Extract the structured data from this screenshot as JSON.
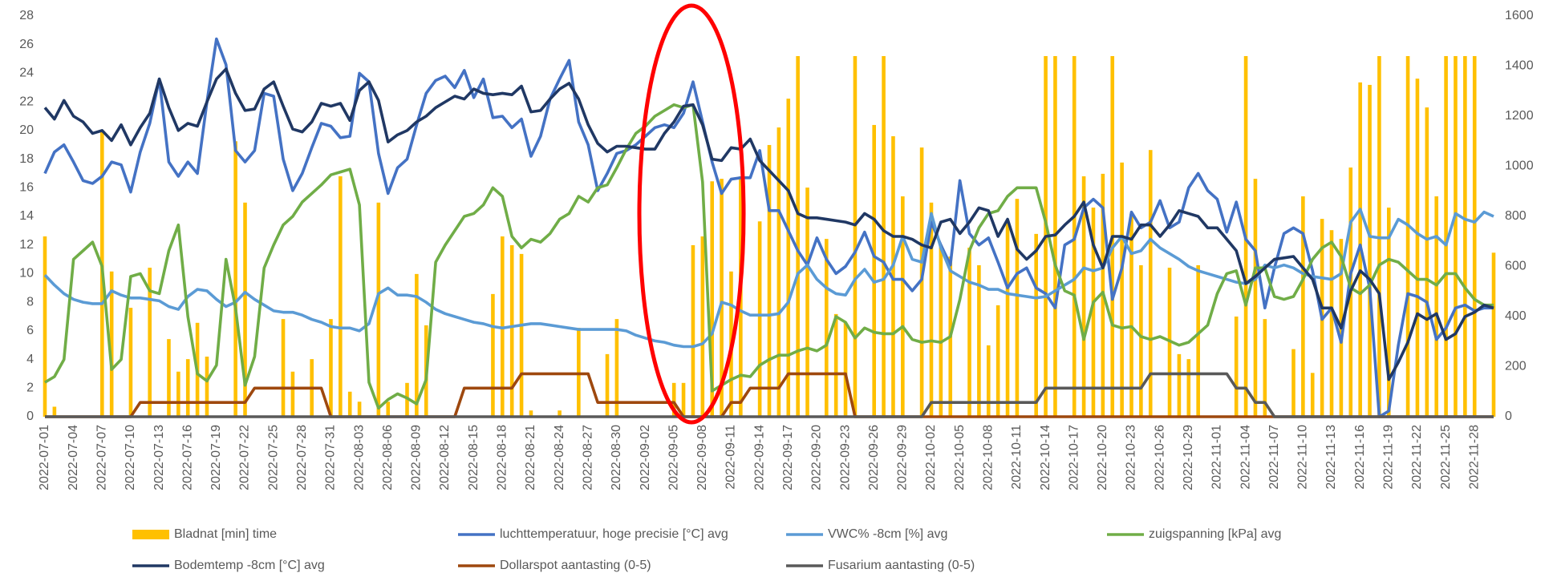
{
  "chart_data": {
    "type": "combo",
    "legend": "bottom",
    "grid": false,
    "ylim": [
      0,
      28
    ],
    "yticks": [
      0,
      2,
      4,
      6,
      8,
      10,
      12,
      14,
      16,
      18,
      20,
      22,
      24,
      26,
      28
    ],
    "y2lim": [
      0,
      1600
    ],
    "y2ticks": [
      0,
      200,
      400,
      600,
      800,
      1000,
      1200,
      1400,
      1600
    ],
    "categories": [
      "2022-07-01",
      null,
      null,
      "2022-07-04",
      null,
      null,
      "2022-07-07",
      null,
      null,
      "2022-07-10",
      null,
      null,
      "2022-07-13",
      null,
      null,
      "2022-07-16",
      null,
      null,
      "2022-07-19",
      null,
      null,
      "2022-07-22",
      null,
      null,
      "2022-07-25",
      null,
      null,
      "2022-07-28",
      null,
      null,
      "2022-07-31",
      null,
      null,
      "2022-08-03",
      null,
      null,
      "2022-08-06",
      null,
      null,
      "2022-08-09",
      null,
      null,
      "2022-08-12",
      null,
      null,
      "2022-08-15",
      null,
      null,
      "2022-08-18",
      null,
      null,
      "2022-08-21",
      null,
      null,
      "2022-08-24",
      null,
      null,
      "2022-08-27",
      null,
      null,
      "2022-08-30",
      null,
      null,
      "2022-09-02",
      null,
      null,
      "2022-09-05",
      null,
      null,
      "2022-09-08",
      null,
      null,
      "2022-09-11",
      null,
      null,
      "2022-09-14",
      null,
      null,
      "2022-09-17",
      null,
      null,
      "2022-09-20",
      null,
      null,
      "2022-09-23",
      null,
      null,
      "2022-09-26",
      null,
      null,
      "2022-09-29",
      null,
      null,
      "2022-10-02",
      null,
      null,
      "2022-10-05",
      null,
      null,
      "2022-10-08",
      null,
      null,
      "2022-10-11",
      null,
      null,
      "2022-10-14",
      null,
      null,
      "2022-10-17",
      null,
      null,
      "2022-10-20",
      null,
      null,
      "2022-10-23",
      null,
      null,
      "2022-10-26",
      null,
      null,
      "2022-10-29",
      null,
      null,
      "2022-11-01",
      null,
      null,
      "2022-11-04",
      null,
      null,
      "2022-11-07",
      null,
      null,
      "2022-11-10",
      null,
      null,
      "2022-11-13",
      null,
      null,
      "2022-11-16",
      null,
      null,
      "2022-11-19",
      null,
      null,
      "2022-11-22",
      null,
      null,
      "2022-11-25",
      null,
      null,
      "2022-11-28",
      null,
      null
    ],
    "series": [
      {
        "name": "Bladnat [min] time",
        "type": "bar",
        "axis": "y2",
        "color": "#ffc000",
        "values": [
          720,
          40,
          0,
          0,
          0,
          0,
          1140,
          580,
          0,
          435,
          0,
          595,
          0,
          310,
          180,
          230,
          375,
          240,
          0,
          0,
          1100,
          855,
          0,
          0,
          0,
          390,
          180,
          0,
          230,
          0,
          390,
          960,
          100,
          60,
          0,
          855,
          60,
          0,
          135,
          570,
          365,
          0,
          0,
          0,
          0,
          0,
          0,
          490,
          720,
          685,
          650,
          25,
          0,
          0,
          25,
          0,
          355,
          0,
          0,
          250,
          390,
          0,
          0,
          0,
          0,
          0,
          135,
          135,
          685,
          720,
          940,
          950,
          580,
          960,
          0,
          780,
          1085,
          1155,
          1270,
          1440,
          915,
          0,
          710,
          410,
          375,
          1440,
          0,
          1165,
          1440,
          1120,
          880,
          0,
          1075,
          855,
          685,
          640,
          0,
          675,
          605,
          285,
          445,
          780,
          870,
          0,
          730,
          1440,
          1440,
          0,
          1440,
          960,
          835,
          970,
          1440,
          1015,
          810,
          605,
          1065,
          0,
          595,
          250,
          230,
          605,
          0,
          0,
          0,
          400,
          1440,
          950,
          390,
          0,
          0,
          270,
          880,
          175,
          790,
          745,
          710,
          995,
          1335,
          1325,
          1440,
          835,
          0,
          1440,
          1350,
          1235,
          880,
          1440,
          1440,
          1440,
          1440,
          0,
          655
        ]
      },
      {
        "name": "luchttemperatuur, hoge precisie [°C] avg",
        "type": "line",
        "color": "#4472c4",
        "values": [
          17,
          18.5,
          19,
          17.8,
          16.5,
          16.3,
          16.8,
          17.8,
          17.6,
          15.7,
          18.5,
          20.5,
          23.6,
          17.8,
          16.8,
          17.8,
          17,
          22,
          26.4,
          24.6,
          18.6,
          17.8,
          18.6,
          22.6,
          22.4,
          18,
          15.8,
          17,
          18.8,
          20.5,
          20.3,
          19.5,
          19.6,
          24,
          23.4,
          18.4,
          15.6,
          17.4,
          18,
          20.4,
          22.6,
          23.5,
          23.8,
          23,
          24.2,
          22.3,
          23.6,
          20.9,
          21,
          20.2,
          20.8,
          18.2,
          19.6,
          22.2,
          23.6,
          24.9,
          20.6,
          19,
          15.8,
          17,
          18.4,
          18.6,
          19,
          19.6,
          20.2,
          20.4,
          20.2,
          21.2,
          23.4,
          20.6,
          17.8,
          15.6,
          16.6,
          16.7,
          16.7,
          18.6,
          14.4,
          14.4,
          13,
          11.6,
          10.6,
          12.5,
          11,
          10,
          10.5,
          11.5,
          12.9,
          11.2,
          10.8,
          9.6,
          9.6,
          8.8,
          9.6,
          13.6,
          12,
          10.6,
          16.5,
          12.8,
          12,
          12.5,
          10.8,
          9,
          10,
          10.4,
          9,
          8.6,
          7.6,
          12,
          12.4,
          14.6,
          15.2,
          14.6,
          8.2,
          10.4,
          14.3,
          13.2,
          13.6,
          15.1,
          13.2,
          13.6,
          16,
          17,
          15.8,
          15.2,
          12.9,
          15,
          12.4,
          11.6,
          7.6,
          10.4,
          12.8,
          13.2,
          12.8,
          10.2,
          6.8,
          7.6,
          5.2,
          10,
          12,
          9,
          0,
          0.4,
          5,
          8.6,
          8.4,
          8,
          5.4,
          6.2,
          7.6,
          7.8,
          7.4,
          7.6,
          7.6
        ]
      },
      {
        "name": "VWC% -8cm [%] avg",
        "type": "line",
        "color": "#5b9bd5",
        "values": [
          9.9,
          9.2,
          8.6,
          8.2,
          8,
          7.9,
          7.9,
          8.8,
          8.5,
          8.3,
          8.3,
          8.2,
          8.1,
          7.7,
          7.5,
          8.4,
          8.9,
          8.8,
          8.2,
          7.7,
          8,
          8.7,
          8.2,
          7.8,
          7.4,
          7.3,
          7.3,
          7.1,
          6.8,
          6.6,
          6.3,
          6.2,
          6.2,
          6,
          6.5,
          8.6,
          9,
          8.5,
          8.5,
          8.4,
          8,
          7.5,
          7.2,
          7,
          6.8,
          6.6,
          6.5,
          6.3,
          6.2,
          6.3,
          6.4,
          6.5,
          6.5,
          6.4,
          6.3,
          6.2,
          6.1,
          6.1,
          6.1,
          6.1,
          6.1,
          6,
          5.7,
          5.5,
          5.3,
          5.2,
          5,
          4.9,
          4.9,
          5.1,
          5.8,
          8,
          7.8,
          7.4,
          7.1,
          7.1,
          7.1,
          7.2,
          8,
          10,
          10.6,
          9.6,
          9,
          8.6,
          8.5,
          9.6,
          10.3,
          9.4,
          9.6,
          10.6,
          12.6,
          11,
          10.8,
          14.2,
          11.8,
          10.2,
          9.8,
          9.4,
          9.2,
          8.9,
          8.9,
          8.6,
          8.5,
          8.4,
          8.3,
          8.4,
          8.8,
          9.2,
          9.6,
          10.4,
          10.2,
          10.4,
          11.8,
          12.6,
          11.4,
          11.6,
          12.4,
          11.8,
          11.4,
          11,
          10.5,
          10.2,
          10,
          9.8,
          9.6,
          9.4,
          9.3,
          9.6,
          10.6,
          10.4,
          10.6,
          10.4,
          10,
          9.8,
          9.7,
          9.6,
          10,
          13.6,
          14.5,
          12.6,
          12.5,
          12.5,
          13.8,
          13.4,
          12.8,
          12.4,
          12.6,
          12,
          14.2,
          13.8,
          13.6,
          14.3,
          14
        ]
      },
      {
        "name": "zuigspanning [kPa] avg",
        "type": "line",
        "color": "#70ad47",
        "values": [
          2.4,
          2.8,
          4,
          11,
          11.6,
          12.2,
          10.5,
          3.3,
          4,
          9.8,
          10,
          8.8,
          8.6,
          11.6,
          13.4,
          7,
          3,
          2.5,
          3.6,
          11,
          7.6,
          2.2,
          4.2,
          10.4,
          12,
          13.4,
          14,
          15,
          15.6,
          16.2,
          16.9,
          17.1,
          17.3,
          14.8,
          2.4,
          0.6,
          1.2,
          1.6,
          1.3,
          0.9,
          2.6,
          10.8,
          12,
          13,
          14,
          14.2,
          14.8,
          16,
          15.4,
          12.6,
          11.8,
          12.4,
          12.2,
          12.8,
          13.8,
          14.2,
          15.4,
          15,
          16,
          16.2,
          17.4,
          18.7,
          19.8,
          20.3,
          21,
          21.4,
          21.8,
          21.6,
          21.8,
          16.4,
          1.8,
          2.2,
          2.6,
          2.9,
          2.8,
          3.6,
          4,
          4.3,
          4.3,
          4.6,
          4.8,
          4.6,
          5,
          7,
          6.6,
          5.5,
          6.2,
          5.9,
          5.8,
          5.8,
          6.3,
          5.4,
          5.2,
          5.3,
          5.2,
          5.6,
          8.2,
          11.6,
          13.2,
          14.2,
          14.4,
          15.4,
          16,
          16,
          16,
          13.6,
          10.6,
          8.8,
          8.5,
          5.4,
          8,
          8.7,
          6.4,
          6.2,
          6.3,
          5.6,
          5.4,
          5.6,
          5.3,
          5,
          5.2,
          5.8,
          6.4,
          8.6,
          10,
          10.2,
          7.8,
          10.4,
          10.4,
          8.4,
          8.2,
          8.4,
          9.6,
          11,
          11.8,
          12.2,
          11.2,
          9,
          8.6,
          9.2,
          10.6,
          11,
          10.8,
          10.2,
          9.6,
          9.6,
          9.2,
          10,
          10,
          9,
          8.2,
          7.8,
          7.8
        ]
      },
      {
        "name": "Bodemtemp -8cm [°C] avg",
        "type": "line",
        "color": "#203864",
        "values": [
          21.6,
          20.8,
          22.1,
          21,
          20.6,
          19.8,
          20,
          19.3,
          20.4,
          19,
          20.2,
          21.2,
          23.6,
          21.6,
          20,
          20.5,
          20.3,
          22,
          23.6,
          24.3,
          22.6,
          21.4,
          21.5,
          22.9,
          23.4,
          21.7,
          20.1,
          19.9,
          20.6,
          21.9,
          21.7,
          21.9,
          20.7,
          22.8,
          23.4,
          22.1,
          19.2,
          19.7,
          20,
          20.6,
          21,
          21.6,
          22,
          22.4,
          22.2,
          22.9,
          22.6,
          22.5,
          22.6,
          22.5,
          23.1,
          21.3,
          21.4,
          22.2,
          22.9,
          23.3,
          22.2,
          20.4,
          19.1,
          18.5,
          18.9,
          18.9,
          18.8,
          18.7,
          18.7,
          19.8,
          20.6,
          21.7,
          21.8,
          20.4,
          18,
          17.9,
          18.8,
          18.7,
          19.4,
          17.9,
          17.2,
          16.5,
          15.8,
          14.2,
          13.9,
          13.9,
          13.8,
          13.7,
          13.6,
          13.4,
          14.2,
          13.8,
          13,
          12.6,
          12.6,
          12.4,
          12,
          11.8,
          13.6,
          13.8,
          12.8,
          13.6,
          14.6,
          14.4,
          12.6,
          13.8,
          11.7,
          11,
          11.6,
          12.6,
          12.7,
          13.4,
          14,
          15,
          12,
          10.4,
          12.6,
          12.6,
          12.4,
          13.4,
          13.4,
          12.6,
          13.4,
          14.4,
          14.2,
          14,
          13.2,
          13.2,
          12.4,
          11.6,
          9.3,
          9.8,
          10.4,
          11,
          11.1,
          11.2,
          10.4,
          9.6,
          7.6,
          7.6,
          6.2,
          8.8,
          10.2,
          9.6,
          8.6,
          2.6,
          3.8,
          5.2,
          7.2,
          6.8,
          7.2,
          5.4,
          5.8,
          7,
          7.3,
          7.8,
          7.6
        ]
      },
      {
        "name": "Dollarspot aantasting (0-5)",
        "type": "line",
        "color": "#9e480e",
        "values": [
          0,
          0,
          0,
          0,
          0,
          0,
          0,
          0,
          0,
          0,
          1,
          1,
          1,
          1,
          1,
          1,
          1,
          1,
          1,
          1,
          1,
          1,
          2,
          2,
          2,
          2,
          2,
          2,
          2,
          2,
          0,
          0,
          0,
          0,
          0,
          0,
          0,
          0,
          0,
          0,
          0,
          0,
          0,
          0,
          2,
          2,
          2,
          2,
          2,
          2,
          3,
          3,
          3,
          3,
          3,
          3,
          3,
          3,
          1,
          1,
          1,
          1,
          1,
          1,
          1,
          1,
          1,
          0,
          0,
          0,
          0,
          0,
          1,
          1,
          2,
          2,
          2,
          2,
          3,
          3,
          3,
          3,
          3,
          3,
          3,
          0,
          0,
          0,
          0,
          0,
          0,
          0,
          0,
          0,
          0,
          0,
          0,
          0,
          0,
          0,
          0,
          0,
          0,
          0,
          0,
          0,
          0,
          0,
          0,
          0,
          0,
          0,
          0,
          0,
          0,
          0,
          0,
          0,
          0,
          0,
          0,
          0,
          0,
          0,
          0,
          0,
          0,
          0,
          0,
          0,
          0,
          0,
          0,
          0,
          0,
          0,
          0,
          0,
          0,
          0,
          0,
          0,
          0,
          0,
          0,
          0,
          0,
          0,
          0,
          0,
          0,
          0,
          0
        ]
      },
      {
        "name": "Fusarium aantasting (0-5)",
        "type": "line",
        "color": "#595959",
        "values": [
          0,
          0,
          0,
          0,
          0,
          0,
          0,
          0,
          0,
          0,
          0,
          0,
          0,
          0,
          0,
          0,
          0,
          0,
          0,
          0,
          0,
          0,
          0,
          0,
          0,
          0,
          0,
          0,
          0,
          0,
          0,
          0,
          0,
          0,
          0,
          0,
          0,
          0,
          0,
          0,
          0,
          0,
          0,
          0,
          0,
          0,
          0,
          0,
          0,
          0,
          0,
          0,
          0,
          0,
          0,
          0,
          0,
          0,
          0,
          0,
          0,
          0,
          0,
          0,
          0,
          0,
          0,
          0,
          0,
          0,
          0,
          0,
          0,
          0,
          0,
          0,
          0,
          0,
          0,
          0,
          0,
          0,
          0,
          0,
          0,
          0,
          0,
          0,
          0,
          0,
          0,
          0,
          0,
          1,
          1,
          1,
          1,
          1,
          1,
          1,
          1,
          1,
          1,
          1,
          1,
          2,
          2,
          2,
          2,
          2,
          2,
          2,
          2,
          2,
          2,
          2,
          3,
          3,
          3,
          3,
          3,
          3,
          3,
          3,
          3,
          2,
          2,
          1,
          1,
          0,
          0,
          0,
          0,
          0,
          0,
          0,
          0,
          0,
          0,
          0,
          0,
          0,
          0,
          0,
          0,
          0,
          0,
          0,
          0,
          0,
          0,
          0,
          0
        ]
      }
    ]
  }
}
